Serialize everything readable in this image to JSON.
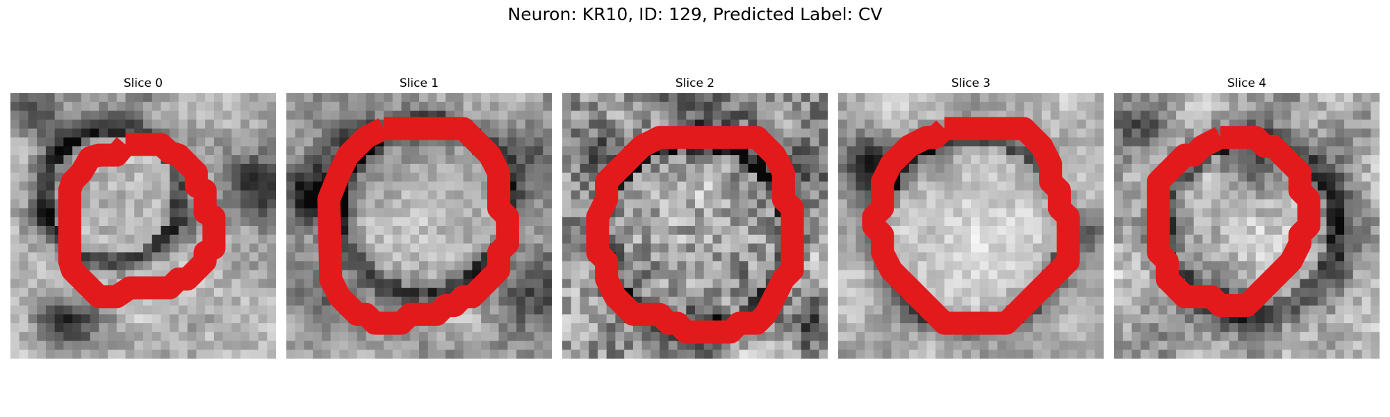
{
  "figure": {
    "title": "Neuron: KR10, ID: 129, Predicted Label: CV"
  },
  "colors": {
    "outline": "#e31a1c",
    "background": "#ffffff"
  },
  "panels": [
    {
      "title": "Slice 0"
    },
    {
      "title": "Slice 1"
    },
    {
      "title": "Slice 2"
    },
    {
      "title": "Slice 3"
    },
    {
      "title": "Slice 4"
    }
  ]
}
